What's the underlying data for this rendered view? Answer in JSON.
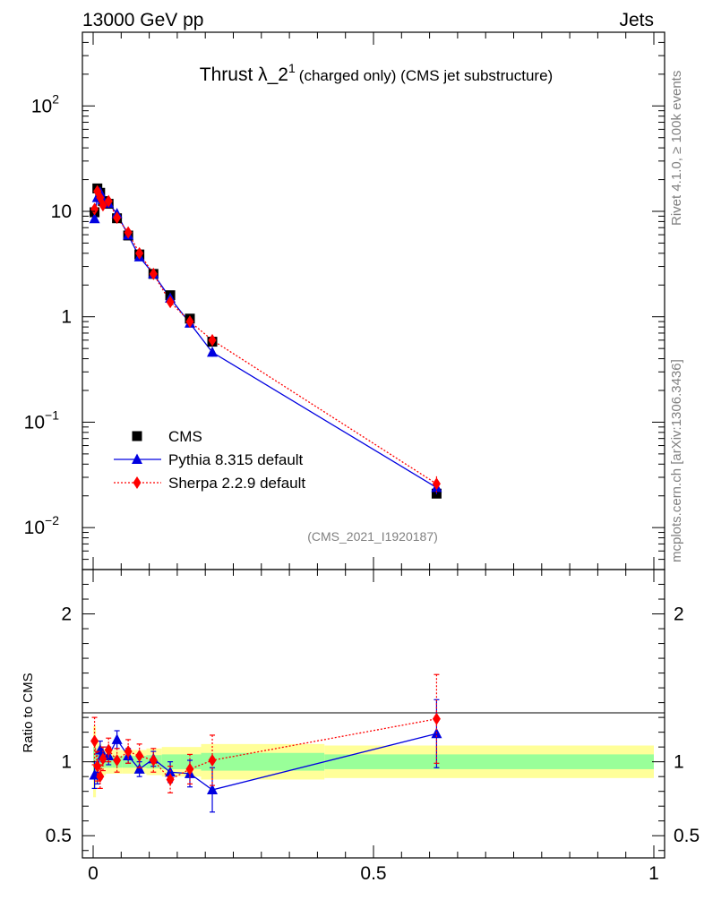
{
  "header": {
    "left": "13000 GeV pp",
    "right": "Jets"
  },
  "side_labels": {
    "rivet": "Rivet 4.1.0, ≥ 100k events",
    "mcplots": "mcplots.cern.ch [arXiv:1306.3436]"
  },
  "chart_data": {
    "type": "line",
    "title_main": "Thrust λ_2",
    "title_sup": "1",
    "title_rest": "(charged only) (CMS jet substructure)",
    "analysis_id": "(CMS_2021_I1920187)",
    "xlim": [
      0,
      1
    ],
    "ylim_log": [
      0.004,
      500
    ],
    "ratio_ylim": [
      0.35,
      2.3
    ],
    "ratio_ylabel": "Ratio to CMS",
    "x_ticks": [
      {
        "v": 0,
        "label": "0"
      },
      {
        "v": 0.5,
        "label": "0.5"
      },
      {
        "v": 1,
        "label": "1"
      }
    ],
    "y_ticks": [
      {
        "v": 0.01,
        "base": "10",
        "exp": "−2"
      },
      {
        "v": 0.1,
        "base": "10",
        "exp": "−1"
      },
      {
        "v": 1,
        "label": "1"
      },
      {
        "v": 10,
        "label": "10"
      },
      {
        "v": 100,
        "base": "10",
        "exp": "2"
      }
    ],
    "ratio_ticks": [
      {
        "v": 0.5,
        "label": "0.5"
      },
      {
        "v": 1,
        "label": "1"
      },
      {
        "v": 2,
        "label": "2"
      }
    ],
    "x": [
      0.0025,
      0.0075,
      0.0125,
      0.0175,
      0.0275,
      0.0425,
      0.0625,
      0.0825,
      0.1075,
      0.1375,
      0.1725,
      0.2125,
      0.6125
    ],
    "series": [
      {
        "name": "CMS",
        "color": "#000000",
        "marker": "square",
        "values": [
          9.8,
          16.5,
          15.0,
          12.5,
          11.8,
          8.6,
          5.9,
          3.9,
          2.55,
          1.6,
          0.96,
          0.58,
          0.021
        ],
        "ratio_band_inner": [
          0.1,
          0.06,
          0.05,
          0.04,
          0.04,
          0.04,
          0.04,
          0.04,
          0.045,
          0.05,
          0.05,
          0.06,
          0.05
        ],
        "ratio_band_outer": [
          0.24,
          0.15,
          0.12,
          0.09,
          0.08,
          0.08,
          0.08,
          0.08,
          0.09,
          0.1,
          0.1,
          0.12,
          0.11
        ]
      },
      {
        "name": "Pythia 8.315 default",
        "color": "#0000e0",
        "marker": "triangle",
        "line": "solid",
        "values": [
          8.5,
          13.5,
          15.2,
          12.9,
          11.9,
          9.5,
          5.95,
          3.7,
          2.55,
          1.5,
          0.87,
          0.46,
          0.024
        ],
        "ratio": [
          0.91,
          0.91,
          1.08,
          1.05,
          1.04,
          1.15,
          1.04,
          0.95,
          1.02,
          0.93,
          0.92,
          0.81,
          1.19
        ],
        "ratio_err": [
          0.09,
          0.06,
          0.06,
          0.05,
          0.06,
          0.06,
          0.05,
          0.05,
          0.05,
          0.07,
          0.09,
          0.15,
          0.23
        ]
      },
      {
        "name": "Sherpa 2.2.9 default",
        "color": "#ff0000",
        "marker": "diamond",
        "line": "dotted",
        "values": [
          10.5,
          15.5,
          13.5,
          11.4,
          12.5,
          8.7,
          6.3,
          4.0,
          2.55,
          1.38,
          0.9,
          0.6,
          0.026
        ],
        "ratio": [
          1.14,
          0.97,
          0.9,
          1.02,
          1.08,
          1.01,
          1.07,
          1.04,
          1.01,
          0.88,
          0.95,
          1.01,
          1.29
        ],
        "ratio_err": [
          0.16,
          0.1,
          0.08,
          0.08,
          0.08,
          0.08,
          0.08,
          0.08,
          0.08,
          0.09,
          0.1,
          0.17,
          0.3
        ]
      }
    ]
  }
}
